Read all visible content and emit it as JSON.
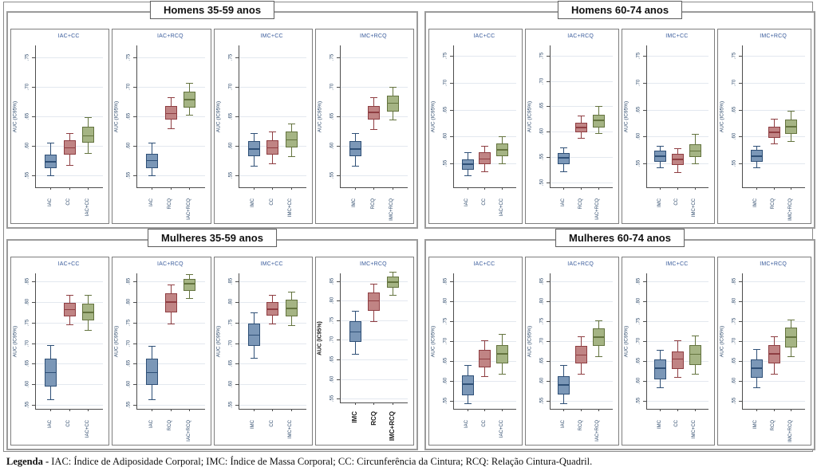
{
  "legend": {
    "label": "Legenda -",
    "text": " IAC: Índice de Adiposidade Corporal; IMC: Índice de Massa Corporal; CC: Circunferência da Cintura; RCQ: Relação Cintura-Quadril."
  },
  "box_colors": {
    "blue": {
      "fill": "#7b97b7",
      "stroke": "#2f5077"
    },
    "red": {
      "fill": "#c08484",
      "stroke": "#8f3e42"
    },
    "green": {
      "fill": "#a5b484",
      "stroke": "#64743f"
    }
  },
  "chart_data": [
    {
      "type": "box",
      "title": "Homens 35-59 anos",
      "panels": [
        {
          "title": "IAC+CC",
          "ylabel": "AUC (IC95%)",
          "ylim": [
            0.53,
            0.77
          ],
          "yticks": [
            0.55,
            0.6,
            0.65,
            0.7,
            0.75
          ],
          "boxes": [
            {
              "label": "IAC",
              "color": "blue",
              "low": 0.55,
              "q1": 0.562,
              "median": 0.573,
              "q3": 0.585,
              "high": 0.605
            },
            {
              "label": "CC",
              "color": "red",
              "low": 0.568,
              "q1": 0.585,
              "median": 0.597,
              "q3": 0.61,
              "high": 0.622
            },
            {
              "label": "IAC+CC",
              "color": "green",
              "low": 0.588,
              "q1": 0.605,
              "median": 0.617,
              "q3": 0.632,
              "high": 0.648
            }
          ]
        },
        {
          "title": "IAC+RCQ",
          "ylabel": "AUC (IC95%)",
          "ylim": [
            0.53,
            0.77
          ],
          "yticks": [
            0.55,
            0.6,
            0.65,
            0.7,
            0.75
          ],
          "boxes": [
            {
              "label": "IAC",
              "color": "blue",
              "low": 0.55,
              "q1": 0.562,
              "median": 0.575,
              "q3": 0.587,
              "high": 0.605
            },
            {
              "label": "RCQ",
              "color": "red",
              "low": 0.63,
              "q1": 0.645,
              "median": 0.655,
              "q3": 0.668,
              "high": 0.683
            },
            {
              "label": "IAC+RCQ",
              "color": "green",
              "low": 0.653,
              "q1": 0.665,
              "median": 0.678,
              "q3": 0.692,
              "high": 0.707
            }
          ]
        },
        {
          "title": "IMC+CC",
          "ylabel": "AUC (IC95%)",
          "ylim": [
            0.53,
            0.77
          ],
          "yticks": [
            0.55,
            0.6,
            0.65,
            0.7,
            0.75
          ],
          "boxes": [
            {
              "label": "IMC",
              "color": "blue",
              "low": 0.567,
              "q1": 0.582,
              "median": 0.595,
              "q3": 0.608,
              "high": 0.622
            },
            {
              "label": "CC",
              "color": "red",
              "low": 0.57,
              "q1": 0.585,
              "median": 0.597,
              "q3": 0.61,
              "high": 0.625
            },
            {
              "label": "IMC+CC",
              "color": "green",
              "low": 0.583,
              "q1": 0.598,
              "median": 0.61,
              "q3": 0.625,
              "high": 0.638
            }
          ]
        },
        {
          "title": "IMC+RCQ",
          "ylabel": "AUC (IC95%)",
          "ylim": [
            0.53,
            0.77
          ],
          "yticks": [
            0.55,
            0.6,
            0.65,
            0.7,
            0.75
          ],
          "boxes": [
            {
              "label": "IMC",
              "color": "blue",
              "low": 0.567,
              "q1": 0.582,
              "median": 0.595,
              "q3": 0.608,
              "high": 0.622
            },
            {
              "label": "RCQ",
              "color": "red",
              "low": 0.628,
              "q1": 0.645,
              "median": 0.657,
              "q3": 0.668,
              "high": 0.683
            },
            {
              "label": "IMC+RCQ",
              "color": "green",
              "low": 0.645,
              "q1": 0.658,
              "median": 0.672,
              "q3": 0.685,
              "high": 0.7
            }
          ]
        }
      ]
    },
    {
      "type": "box",
      "title": "Homens 60-74 anos",
      "panels": [
        {
          "title": "IAC+CC",
          "ylabel": "AUC (IC95%)",
          "ylim": [
            0.505,
            0.77
          ],
          "yticks": [
            0.55,
            0.6,
            0.65,
            0.7,
            0.75
          ],
          "boxes": [
            {
              "label": "IAC",
              "color": "blue",
              "low": 0.527,
              "q1": 0.538,
              "median": 0.548,
              "q3": 0.557,
              "high": 0.57
            },
            {
              "label": "CC",
              "color": "red",
              "low": 0.535,
              "q1": 0.548,
              "median": 0.558,
              "q3": 0.57,
              "high": 0.583
            },
            {
              "label": "IAC+CC",
              "color": "green",
              "low": 0.55,
              "q1": 0.563,
              "median": 0.575,
              "q3": 0.587,
              "high": 0.6
            }
          ]
        },
        {
          "title": "IAC+RCQ",
          "ylabel": "AUC (IC95%)",
          "ylim": [
            0.49,
            0.77
          ],
          "yticks": [
            0.5,
            0.55,
            0.6,
            0.65,
            0.7,
            0.75
          ],
          "boxes": [
            {
              "label": "IAC",
              "color": "blue",
              "low": 0.522,
              "q1": 0.535,
              "median": 0.548,
              "q3": 0.558,
              "high": 0.568
            },
            {
              "label": "RCQ",
              "color": "red",
              "low": 0.588,
              "q1": 0.598,
              "median": 0.608,
              "q3": 0.618,
              "high": 0.632
            },
            {
              "label": "IAC+RCQ",
              "color": "green",
              "low": 0.597,
              "q1": 0.608,
              "median": 0.622,
              "q3": 0.633,
              "high": 0.65
            }
          ]
        },
        {
          "title": "IMC+CC",
          "ylabel": "AUC (IC95%)",
          "ylim": [
            0.505,
            0.77
          ],
          "yticks": [
            0.55,
            0.6,
            0.65,
            0.7,
            0.75
          ],
          "boxes": [
            {
              "label": "IMC",
              "color": "blue",
              "low": 0.542,
              "q1": 0.553,
              "median": 0.563,
              "q3": 0.573,
              "high": 0.583
            },
            {
              "label": "CC",
              "color": "red",
              "low": 0.533,
              "q1": 0.547,
              "median": 0.557,
              "q3": 0.568,
              "high": 0.578
            },
            {
              "label": "IMC+CC",
              "color": "green",
              "low": 0.55,
              "q1": 0.562,
              "median": 0.573,
              "q3": 0.585,
              "high": 0.605
            }
          ]
        },
        {
          "title": "IMC+RCQ",
          "ylabel": "AUC (IC95%)",
          "ylim": [
            0.505,
            0.77
          ],
          "yticks": [
            0.55,
            0.6,
            0.65,
            0.7,
            0.75
          ],
          "boxes": [
            {
              "label": "IMC",
              "color": "blue",
              "low": 0.542,
              "q1": 0.553,
              "median": 0.563,
              "q3": 0.575,
              "high": 0.583
            },
            {
              "label": "RCQ",
              "color": "red",
              "low": 0.587,
              "q1": 0.598,
              "median": 0.608,
              "q3": 0.618,
              "high": 0.633
            },
            {
              "label": "IMC+RCQ",
              "color": "green",
              "low": 0.592,
              "q1": 0.605,
              "median": 0.618,
              "q3": 0.632,
              "high": 0.648
            }
          ]
        }
      ]
    },
    {
      "type": "box",
      "title": "Mulheres 35-59 anos",
      "panels": [
        {
          "title": "IAC+CC",
          "ylabel": "AUC (IC95%)",
          "ylim": [
            0.54,
            0.87
          ],
          "yticks": [
            0.55,
            0.6,
            0.65,
            0.7,
            0.75,
            0.8,
            0.85
          ],
          "boxes": [
            {
              "label": "IAC",
              "color": "blue",
              "low": 0.563,
              "q1": 0.595,
              "median": 0.628,
              "q3": 0.662,
              "high": 0.695
            },
            {
              "label": "CC",
              "color": "red",
              "low": 0.745,
              "q1": 0.765,
              "median": 0.782,
              "q3": 0.798,
              "high": 0.817
            },
            {
              "label": "IAC+CC",
              "color": "green",
              "low": 0.733,
              "q1": 0.755,
              "median": 0.775,
              "q3": 0.797,
              "high": 0.818
            }
          ]
        },
        {
          "title": "IAC+RCQ",
          "ylabel": "AUC (IC95%)",
          "ylim": [
            0.54,
            0.87
          ],
          "yticks": [
            0.55,
            0.6,
            0.65,
            0.7,
            0.75,
            0.8,
            0.85
          ],
          "boxes": [
            {
              "label": "IAC",
              "color": "blue",
              "low": 0.563,
              "q1": 0.598,
              "median": 0.628,
              "q3": 0.662,
              "high": 0.693
            },
            {
              "label": "RCQ",
              "color": "red",
              "low": 0.748,
              "q1": 0.775,
              "median": 0.8,
              "q3": 0.822,
              "high": 0.843
            },
            {
              "label": "IAC+RCQ",
              "color": "green",
              "low": 0.81,
              "q1": 0.828,
              "median": 0.845,
              "q3": 0.857,
              "high": 0.868
            }
          ]
        },
        {
          "title": "IMC+CC",
          "ylabel": "AUC (IC95%)",
          "ylim": [
            0.54,
            0.87
          ],
          "yticks": [
            0.55,
            0.6,
            0.65,
            0.7,
            0.75,
            0.8,
            0.85
          ],
          "boxes": [
            {
              "label": "IMC",
              "color": "blue",
              "low": 0.665,
              "q1": 0.693,
              "median": 0.72,
              "q3": 0.748,
              "high": 0.775
            },
            {
              "label": "CC",
              "color": "red",
              "low": 0.748,
              "q1": 0.768,
              "median": 0.783,
              "q3": 0.8,
              "high": 0.817
            },
            {
              "label": "IMC+CC",
              "color": "green",
              "low": 0.743,
              "q1": 0.765,
              "median": 0.785,
              "q3": 0.805,
              "high": 0.825
            }
          ]
        },
        {
          "title": "IMC+RCQ",
          "ylabel": "AUC (IC95%)",
          "bold_labels": true,
          "ylim": [
            0.54,
            0.87
          ],
          "yticks": [
            0.55,
            0.6,
            0.65,
            0.7,
            0.75,
            0.8,
            0.85
          ],
          "boxes": [
            {
              "label": "IMC",
              "color": "blue",
              "low": 0.665,
              "q1": 0.695,
              "median": 0.72,
              "q3": 0.748,
              "high": 0.775
            },
            {
              "label": "RCQ",
              "color": "red",
              "low": 0.748,
              "q1": 0.775,
              "median": 0.8,
              "q3": 0.822,
              "high": 0.843
            },
            {
              "label": "IMC+RCQ",
              "color": "green",
              "low": 0.815,
              "q1": 0.833,
              "median": 0.848,
              "q3": 0.862,
              "high": 0.875
            }
          ]
        }
      ]
    },
    {
      "type": "box",
      "title": "Mulheres 60-74 anos",
      "panels": [
        {
          "title": "IAC+CC",
          "ylabel": "AUC (IC95%)",
          "ylim": [
            0.53,
            0.87
          ],
          "yticks": [
            0.55,
            0.6,
            0.65,
            0.7,
            0.75,
            0.8,
            0.85
          ],
          "boxes": [
            {
              "label": "IAC",
              "color": "blue",
              "low": 0.545,
              "q1": 0.565,
              "median": 0.592,
              "q3": 0.615,
              "high": 0.64
            },
            {
              "label": "CC",
              "color": "red",
              "low": 0.612,
              "q1": 0.635,
              "median": 0.655,
              "q3": 0.678,
              "high": 0.702
            },
            {
              "label": "IAC+CC",
              "color": "green",
              "low": 0.618,
              "q1": 0.645,
              "median": 0.668,
              "q3": 0.69,
              "high": 0.718
            }
          ]
        },
        {
          "title": "IAC+RCQ",
          "ylabel": "AUC (IC95%)",
          "ylim": [
            0.53,
            0.87
          ],
          "yticks": [
            0.55,
            0.6,
            0.65,
            0.7,
            0.75,
            0.8,
            0.85
          ],
          "boxes": [
            {
              "label": "IAC",
              "color": "blue",
              "low": 0.545,
              "q1": 0.567,
              "median": 0.59,
              "q3": 0.613,
              "high": 0.64
            },
            {
              "label": "RCQ",
              "color": "red",
              "low": 0.618,
              "q1": 0.645,
              "median": 0.665,
              "q3": 0.688,
              "high": 0.713
            },
            {
              "label": "IAC+RCQ",
              "color": "green",
              "low": 0.662,
              "q1": 0.688,
              "median": 0.71,
              "q3": 0.732,
              "high": 0.753
            }
          ]
        },
        {
          "title": "IMC+CC",
          "ylabel": "AUC (IC95%)",
          "ylim": [
            0.53,
            0.87
          ],
          "yticks": [
            0.55,
            0.6,
            0.65,
            0.7,
            0.75,
            0.8,
            0.85
          ],
          "boxes": [
            {
              "label": "IMC",
              "color": "blue",
              "low": 0.585,
              "q1": 0.605,
              "median": 0.632,
              "q3": 0.655,
              "high": 0.678
            },
            {
              "label": "CC",
              "color": "red",
              "low": 0.61,
              "q1": 0.63,
              "median": 0.655,
              "q3": 0.675,
              "high": 0.702
            },
            {
              "label": "IMC+CC",
              "color": "green",
              "low": 0.618,
              "q1": 0.64,
              "median": 0.667,
              "q3": 0.69,
              "high": 0.715
            }
          ]
        },
        {
          "title": "IMC+RCQ",
          "ylabel": "AUC (IC95%)",
          "ylim": [
            0.53,
            0.87
          ],
          "yticks": [
            0.55,
            0.6,
            0.65,
            0.7,
            0.75,
            0.8,
            0.85
          ],
          "boxes": [
            {
              "label": "IMC",
              "color": "blue",
              "low": 0.585,
              "q1": 0.608,
              "median": 0.632,
              "q3": 0.655,
              "high": 0.68
            },
            {
              "label": "RCQ",
              "color": "red",
              "low": 0.618,
              "q1": 0.645,
              "median": 0.668,
              "q3": 0.69,
              "high": 0.713
            },
            {
              "label": "IMC+RCQ",
              "color": "green",
              "low": 0.663,
              "q1": 0.685,
              "median": 0.71,
              "q3": 0.735,
              "high": 0.755
            }
          ]
        }
      ]
    }
  ]
}
